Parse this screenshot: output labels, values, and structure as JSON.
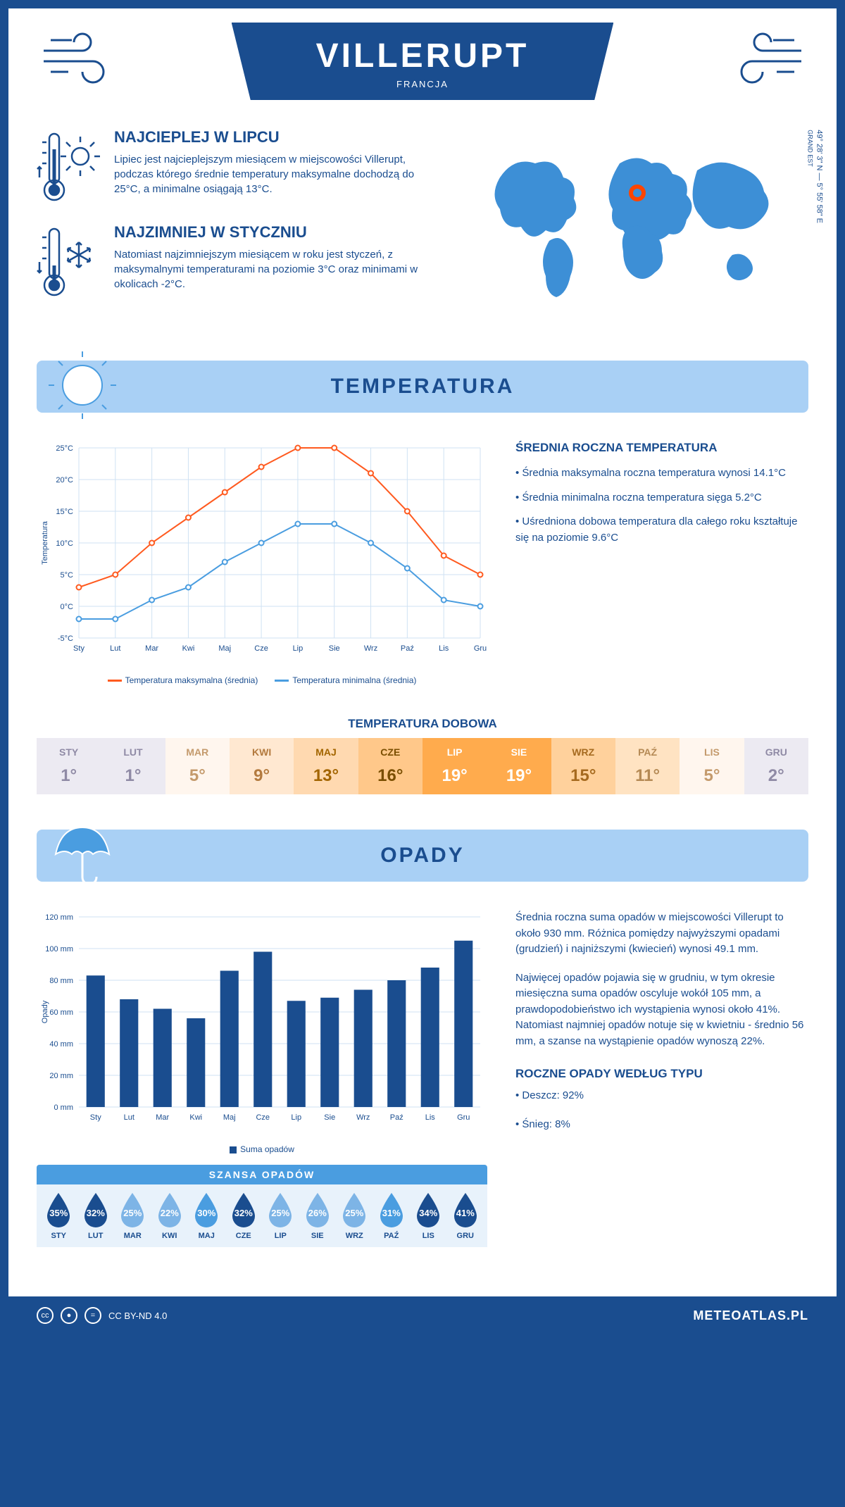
{
  "header": {
    "city": "VILLERUPT",
    "country": "FRANCJA"
  },
  "intro": {
    "hot": {
      "title": "NAJCIEPLEJ W LIPCU",
      "text": "Lipiec jest najcieplejszym miesiącem w miejscowości Villerupt, podczas którego średnie temperatury maksymalne dochodzą do 25°C, a minimalne osiągają 13°C."
    },
    "cold": {
      "title": "NAJZIMNIEJ W STYCZNIU",
      "text": "Natomiast najzimniejszym miesiącem w roku jest styczeń, z maksymalnymi temperaturami na poziomie 3°C oraz minimami w okolicach -2°C."
    },
    "coords": "49° 28' 3\" N — 5° 55' 58\" E",
    "region": "GRAND EST"
  },
  "temperature": {
    "section_title": "TEMPERATURA",
    "chart": {
      "type": "line",
      "months": [
        "Sty",
        "Lut",
        "Mar",
        "Kwi",
        "Maj",
        "Cze",
        "Lip",
        "Sie",
        "Wrz",
        "Paź",
        "Lis",
        "Gru"
      ],
      "series": [
        {
          "name": "Temperatura maksymalna (średnia)",
          "color": "#ff5a1f",
          "values": [
            3,
            5,
            10,
            14,
            18,
            22,
            25,
            25,
            21,
            15,
            8,
            5
          ]
        },
        {
          "name": "Temperatura minimalna (średnia)",
          "color": "#4a9de0",
          "values": [
            -2,
            -2,
            1,
            3,
            7,
            10,
            13,
            13,
            10,
            6,
            1,
            0
          ]
        }
      ],
      "ylim": [
        -5,
        25
      ],
      "ytick_step": 5,
      "ylabel": "Temperatura",
      "grid_color": "#cfe2f3",
      "background": "#ffffff",
      "marker": "circle",
      "line_width": 2,
      "axis_font_size": 11
    },
    "annual": {
      "title": "ŚREDNIA ROCZNA TEMPERATURA",
      "bullets": [
        "• Średnia maksymalna roczna temperatura wynosi 14.1°C",
        "• Średnia minimalna roczna temperatura sięga 5.2°C",
        "• Uśredniona dobowa temperatura dla całego roku kształtuje się na poziomie 9.6°C"
      ]
    },
    "daily": {
      "title": "TEMPERATURA DOBOWA",
      "months": [
        "STY",
        "LUT",
        "MAR",
        "KWI",
        "MAJ",
        "CZE",
        "LIP",
        "SIE",
        "WRZ",
        "PAŹ",
        "LIS",
        "GRU"
      ],
      "values": [
        "1°",
        "1°",
        "5°",
        "9°",
        "13°",
        "16°",
        "19°",
        "19°",
        "15°",
        "11°",
        "5°",
        "2°"
      ],
      "bg_colors": [
        "#eceaf2",
        "#eceaf2",
        "#fff6ee",
        "#ffe8d1",
        "#ffd9b0",
        "#ffc88a",
        "#ffab4d",
        "#ffab4d",
        "#ffd19c",
        "#ffe3c2",
        "#fff6ee",
        "#eceaf2"
      ],
      "text_colors": [
        "#8f8aa5",
        "#8f8aa5",
        "#c49a6c",
        "#b37a3e",
        "#a36500",
        "#7a4e00",
        "#ffffff",
        "#ffffff",
        "#a66a1f",
        "#b58a55",
        "#c49a6c",
        "#8f8aa5"
      ]
    }
  },
  "precipitation": {
    "section_title": "OPADY",
    "chart": {
      "type": "bar",
      "months": [
        "Sty",
        "Lut",
        "Mar",
        "Kwi",
        "Maj",
        "Cze",
        "Lip",
        "Sie",
        "Wrz",
        "Paź",
        "Lis",
        "Gru"
      ],
      "values": [
        83,
        68,
        62,
        56,
        86,
        98,
        67,
        69,
        74,
        80,
        88,
        105
      ],
      "ylim": [
        0,
        120
      ],
      "ytick_step": 20,
      "ylabel": "Opady",
      "bar_color": "#1a4d8f",
      "grid_color": "#cfe2f3",
      "legend_label": "Suma opadów",
      "bar_width": 0.55,
      "axis_font_size": 11
    },
    "text1": "Średnia roczna suma opadów w miejscowości Villerupt to około 930 mm. Różnica pomiędzy najwyższymi opadami (grudzień) i najniższymi (kwiecień) wynosi 49.1 mm.",
    "text2": "Najwięcej opadów pojawia się w grudniu, w tym okresie miesięczna suma opadów oscyluje wokół 105 mm, a prawdopodobieństwo ich wystąpienia wynosi około 41%. Natomiast najmniej opadów notuje się w kwietniu - średnio 56 mm, a szanse na wystąpienie opadów wynoszą 22%.",
    "chance": {
      "title": "SZANSA OPADÓW",
      "months": [
        "STY",
        "LUT",
        "MAR",
        "KWI",
        "MAJ",
        "CZE",
        "LIP",
        "SIE",
        "WRZ",
        "PAŹ",
        "LIS",
        "GRU"
      ],
      "values": [
        "35%",
        "32%",
        "25%",
        "22%",
        "30%",
        "32%",
        "25%",
        "26%",
        "25%",
        "31%",
        "34%",
        "41%"
      ],
      "drop_colors": [
        "#1a4d8f",
        "#1a4d8f",
        "#7db4e6",
        "#7db4e6",
        "#4a9de0",
        "#1a4d8f",
        "#7db4e6",
        "#7db4e6",
        "#7db4e6",
        "#4a9de0",
        "#1a4d8f",
        "#1a4d8f"
      ]
    },
    "bytype": {
      "title": "ROCZNE OPADY WEDŁUG TYPU",
      "items": [
        "• Deszcz: 92%",
        "• Śnieg: 8%"
      ]
    }
  },
  "footer": {
    "license": "CC BY-ND 4.0",
    "site": "METEOATLAS.PL"
  }
}
